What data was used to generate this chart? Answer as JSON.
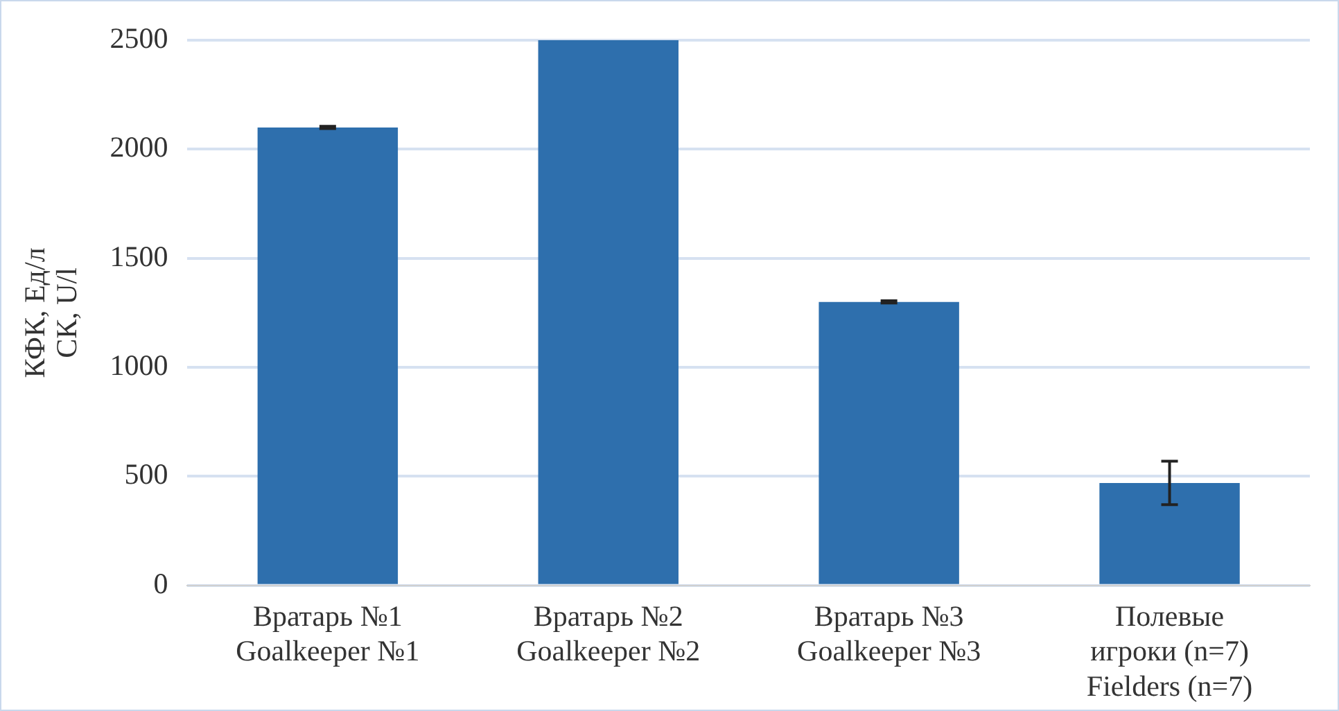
{
  "chart_data": {
    "type": "bar",
    "ylabel": "КФК, Ед/л\nСК, U/l",
    "categories": [
      "Вратарь №1\nGoalkeeper №1",
      "Вратарь №2\nGoalkeeper №2",
      "Вратарь №3\nGoalkeeper №3",
      "Полевые\nигроки (n=7)\nFielders (n=7)"
    ],
    "values": [
      2100,
      2500,
      1300,
      470
    ],
    "errors": [
      5,
      null,
      5,
      100
    ],
    "color": "#2e6fad",
    "ylim": [
      0,
      2500
    ],
    "yticks": [
      0,
      500,
      1000,
      1500,
      2000,
      2500
    ],
    "grid": "y",
    "legend": false
  }
}
